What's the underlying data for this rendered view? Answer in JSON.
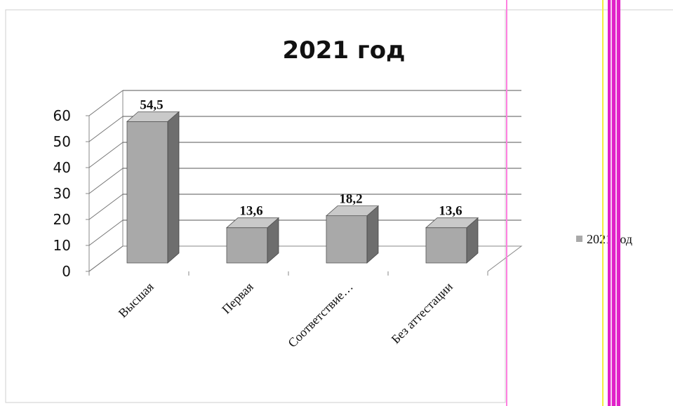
{
  "chart_data": {
    "type": "bar",
    "title": "2021 год",
    "categories": [
      "Высшая",
      "Первая",
      "Соответствие…",
      "Без аттестации"
    ],
    "series": [
      {
        "name": "2021 год",
        "values": [
          54.5,
          13.6,
          18.2,
          13.6
        ]
      }
    ],
    "data_labels": [
      "54,5",
      "13,6",
      "18,2",
      "13,6"
    ],
    "y_ticks": [
      "0",
      "10",
      "20",
      "30",
      "40",
      "50",
      "60"
    ],
    "ylim": [
      0,
      60
    ],
    "grid": true,
    "legend_position": "right",
    "bar_color": "#a9a9a9",
    "bar_side_color": "#6e6e6e",
    "bar_top_color": "#c9c9c9",
    "colors": {
      "frame_line_pink": "#ff80e0",
      "magenta_band": "#e020c8",
      "yellow_line": "#f2ee40"
    }
  }
}
